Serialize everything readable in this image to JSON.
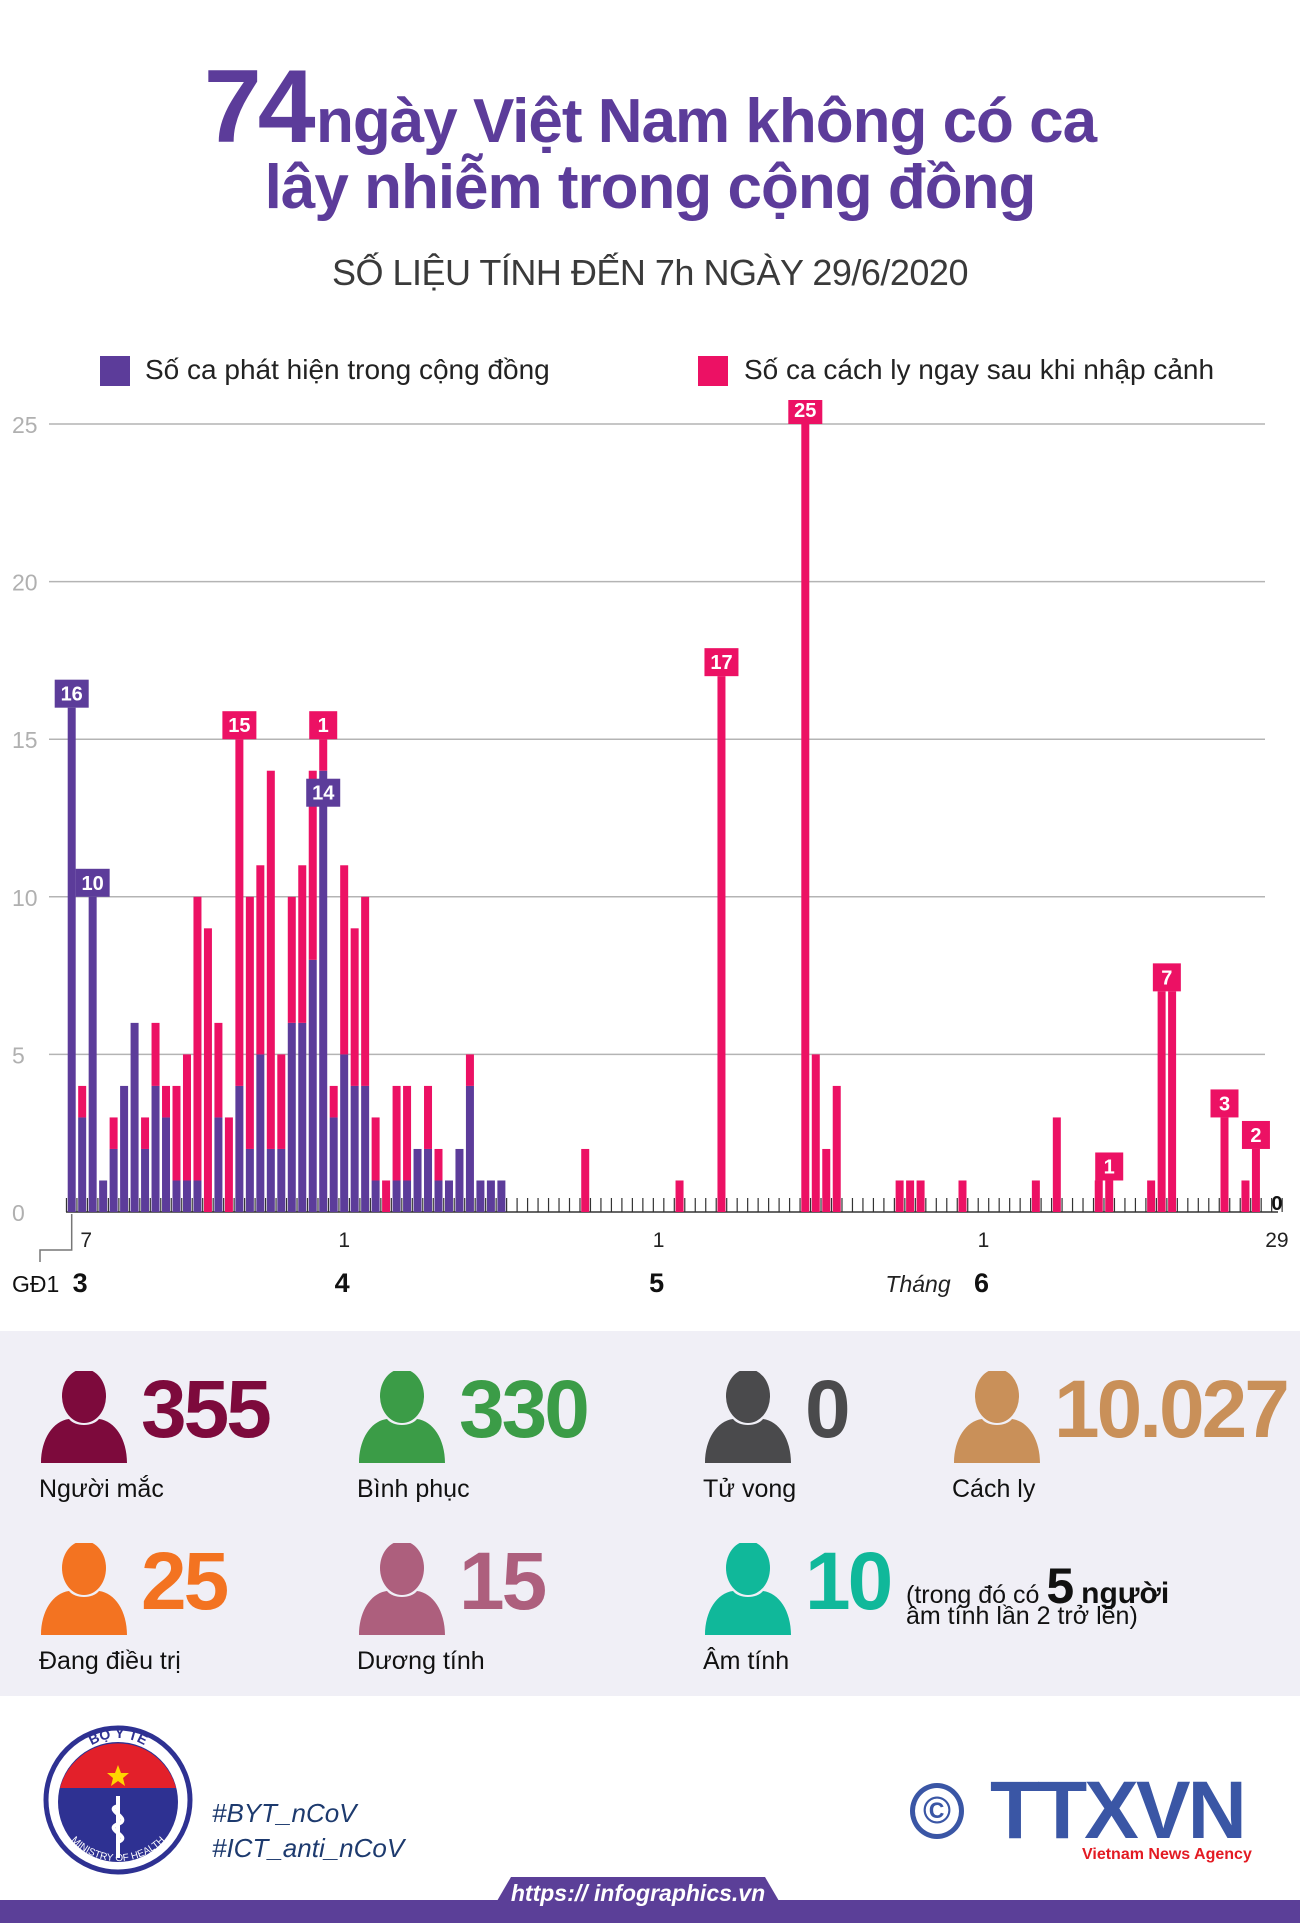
{
  "header": {
    "title_number": "74",
    "title_line1": "ngày Việt Nam không có ca",
    "title_line2": "lây nhiễm trong cộng đồng",
    "subtitle": "SỐ LIỆU TÍNH ĐẾN 7h NGÀY 29/6/2020"
  },
  "colors": {
    "title": "#5c3c9a",
    "community": "#5c3c9a",
    "quarantine": "#ec1164",
    "grid": "#b4b4b4",
    "stats_bg": "#f0eff6",
    "brand_blue": "#3a56a5",
    "brand_red": "#e31b23"
  },
  "chart_data": {
    "type": "bar",
    "stacked": true,
    "title": "",
    "xlabel": "",
    "ylabel": "",
    "ylim": [
      0,
      25
    ],
    "y_ticks": [
      "0",
      "5",
      "10",
      "15",
      "20",
      "25"
    ],
    "grid": true,
    "legend_placement": "top",
    "x_range": [
      "2020-03-06",
      "2020-06-29"
    ],
    "series": [
      {
        "key": "community",
        "name": "Số ca phát hiện trong cộng đồng",
        "color": "#5c3c9a"
      },
      {
        "key": "quarantine",
        "name": "Số ca cách ly ngay sau khi nhập cảnh",
        "color": "#ec1164"
      }
    ],
    "points": [
      {
        "date": "2020-03-06",
        "community": 16,
        "quarantine": 0
      },
      {
        "date": "2020-03-07",
        "community": 3,
        "quarantine": 1
      },
      {
        "date": "2020-03-08",
        "community": 10,
        "quarantine": 0
      },
      {
        "date": "2020-03-09",
        "community": 1,
        "quarantine": 0
      },
      {
        "date": "2020-03-10",
        "community": 2,
        "quarantine": 1
      },
      {
        "date": "2020-03-11",
        "community": 4,
        "quarantine": 0
      },
      {
        "date": "2020-03-12",
        "community": 6,
        "quarantine": 0
      },
      {
        "date": "2020-03-13",
        "community": 2,
        "quarantine": 1
      },
      {
        "date": "2020-03-14",
        "community": 4,
        "quarantine": 2
      },
      {
        "date": "2020-03-15",
        "community": 3,
        "quarantine": 1
      },
      {
        "date": "2020-03-16",
        "community": 1,
        "quarantine": 3
      },
      {
        "date": "2020-03-17",
        "community": 1,
        "quarantine": 4
      },
      {
        "date": "2020-03-18",
        "community": 1,
        "quarantine": 9
      },
      {
        "date": "2020-03-19",
        "community": 0,
        "quarantine": 9
      },
      {
        "date": "2020-03-20",
        "community": 3,
        "quarantine": 3
      },
      {
        "date": "2020-03-21",
        "community": 0,
        "quarantine": 3
      },
      {
        "date": "2020-03-22",
        "community": 4,
        "quarantine": 11
      },
      {
        "date": "2020-03-23",
        "community": 2,
        "quarantine": 8
      },
      {
        "date": "2020-03-24",
        "community": 5,
        "quarantine": 6
      },
      {
        "date": "2020-03-25",
        "community": 2,
        "quarantine": 12
      },
      {
        "date": "2020-03-26",
        "community": 2,
        "quarantine": 3
      },
      {
        "date": "2020-03-27",
        "community": 6,
        "quarantine": 4
      },
      {
        "date": "2020-03-28",
        "community": 6,
        "quarantine": 5
      },
      {
        "date": "2020-03-29",
        "community": 8,
        "quarantine": 6
      },
      {
        "date": "2020-03-30",
        "community": 14,
        "quarantine": 1
      },
      {
        "date": "2020-03-31",
        "community": 3,
        "quarantine": 1
      },
      {
        "date": "2020-04-01",
        "community": 5,
        "quarantine": 6
      },
      {
        "date": "2020-04-02",
        "community": 4,
        "quarantine": 5
      },
      {
        "date": "2020-04-03",
        "community": 4,
        "quarantine": 6
      },
      {
        "date": "2020-04-04",
        "community": 1,
        "quarantine": 2
      },
      {
        "date": "2020-04-05",
        "community": 0,
        "quarantine": 1
      },
      {
        "date": "2020-04-06",
        "community": 1,
        "quarantine": 3
      },
      {
        "date": "2020-04-07",
        "community": 1,
        "quarantine": 3
      },
      {
        "date": "2020-04-08",
        "community": 2,
        "quarantine": 0
      },
      {
        "date": "2020-04-09",
        "community": 2,
        "quarantine": 2
      },
      {
        "date": "2020-04-10",
        "community": 1,
        "quarantine": 1
      },
      {
        "date": "2020-04-11",
        "community": 1,
        "quarantine": 0
      },
      {
        "date": "2020-04-12",
        "community": 2,
        "quarantine": 0
      },
      {
        "date": "2020-04-13",
        "community": 4,
        "quarantine": 1
      },
      {
        "date": "2020-04-14",
        "community": 1,
        "quarantine": 0
      },
      {
        "date": "2020-04-15",
        "community": 1,
        "quarantine": 0
      },
      {
        "date": "2020-04-16",
        "community": 1,
        "quarantine": 0
      },
      {
        "date": "2020-04-24",
        "community": 0,
        "quarantine": 2
      },
      {
        "date": "2020-05-03",
        "community": 0,
        "quarantine": 1
      },
      {
        "date": "2020-05-07",
        "community": 0,
        "quarantine": 17
      },
      {
        "date": "2020-05-15",
        "community": 0,
        "quarantine": 25
      },
      {
        "date": "2020-05-16",
        "community": 0,
        "quarantine": 5
      },
      {
        "date": "2020-05-17",
        "community": 0,
        "quarantine": 2
      },
      {
        "date": "2020-05-18",
        "community": 0,
        "quarantine": 4
      },
      {
        "date": "2020-05-24",
        "community": 0,
        "quarantine": 1
      },
      {
        "date": "2020-05-25",
        "community": 0,
        "quarantine": 1
      },
      {
        "date": "2020-05-26",
        "community": 0,
        "quarantine": 1
      },
      {
        "date": "2020-05-30",
        "community": 0,
        "quarantine": 1
      },
      {
        "date": "2020-06-06",
        "community": 0,
        "quarantine": 1
      },
      {
        "date": "2020-06-08",
        "community": 0,
        "quarantine": 3
      },
      {
        "date": "2020-06-12",
        "community": 0,
        "quarantine": 1
      },
      {
        "date": "2020-06-13",
        "community": 0,
        "quarantine": 1
      },
      {
        "date": "2020-06-17",
        "community": 0,
        "quarantine": 1
      },
      {
        "date": "2020-06-18",
        "community": 0,
        "quarantine": 7
      },
      {
        "date": "2020-06-19",
        "community": 0,
        "quarantine": 7
      },
      {
        "date": "2020-06-24",
        "community": 0,
        "quarantine": 3
      },
      {
        "date": "2020-06-26",
        "community": 0,
        "quarantine": 1
      },
      {
        "date": "2020-06-27",
        "community": 0,
        "quarantine": 2
      },
      {
        "date": "2020-06-29",
        "community": 0,
        "quarantine": 0
      }
    ],
    "annotations": [
      {
        "dates": [
          "2020-03-06"
        ],
        "text": "16",
        "series": "community",
        "placement": "top"
      },
      {
        "dates": [
          "2020-03-08"
        ],
        "text": "10",
        "series": "community",
        "placement": "top"
      },
      {
        "dates": [
          "2020-03-22"
        ],
        "text": "15",
        "series": "quarantine",
        "placement": "top"
      },
      {
        "dates": [
          "2020-03-30"
        ],
        "text": "1",
        "series": "quarantine",
        "placement": "top"
      },
      {
        "dates": [
          "2020-03-30"
        ],
        "text": "14",
        "series": "community",
        "placement": "inside"
      },
      {
        "dates": [
          "2020-05-07"
        ],
        "text": "17",
        "series": "quarantine",
        "placement": "top"
      },
      {
        "dates": [
          "2020-05-15"
        ],
        "text": "25",
        "series": "quarantine",
        "placement": "top"
      },
      {
        "dates": [
          "2020-06-13"
        ],
        "text": "1",
        "series": "quarantine",
        "placement": "top"
      },
      {
        "dates": [
          "2020-06-18",
          "2020-06-19"
        ],
        "text": "7",
        "series": "quarantine",
        "placement": "top"
      },
      {
        "dates": [
          "2020-06-24"
        ],
        "text": "3",
        "series": "quarantine",
        "placement": "top"
      },
      {
        "dates": [
          "2020-06-27"
        ],
        "text": "2",
        "series": "quarantine",
        "placement": "top"
      },
      {
        "dates": [
          "2020-06-29"
        ],
        "text": "0",
        "series": "none",
        "placement": "axis"
      }
    ],
    "x_tick_labels": [
      {
        "date": "2020-03-07",
        "label": "7"
      },
      {
        "date": "2020-04-01",
        "label": "1"
      },
      {
        "date": "2020-05-01",
        "label": "1"
      },
      {
        "date": "2020-06-01",
        "label": "1"
      },
      {
        "date": "2020-06-29",
        "label": "29"
      }
    ],
    "month_labels": [
      {
        "date": "2020-03-07",
        "label": "3"
      },
      {
        "date": "2020-04-01",
        "label": "4"
      },
      {
        "date": "2020-05-01",
        "label": "5"
      },
      {
        "date": "2020-06-01",
        "label": "6"
      }
    ],
    "month_prefix": "Tháng",
    "phase_label": "GĐ1"
  },
  "stats": [
    {
      "value": "355",
      "label": "Người mắc",
      "color": "#7d0a3c"
    },
    {
      "value": "330",
      "label": "Bình phục",
      "color": "#3b9c47"
    },
    {
      "value": "0",
      "label": "Tử vong",
      "color": "#4a4a4c"
    },
    {
      "value": "10.027",
      "label": "Cách ly",
      "color": "#c99059"
    },
    {
      "value": "25",
      "label": "Đang điều trị",
      "color": "#f37321"
    },
    {
      "value": "15",
      "label": "Dương tính",
      "color": "#ad5f7d"
    },
    {
      "value": "10",
      "label": "Âm tính",
      "color": "#10b89a"
    }
  ],
  "stats_note": {
    "prefix": "(trong đó có",
    "number": "5",
    "suffix": "người",
    "line2": "âm tính lần 2 trở lên)"
  },
  "footer": {
    "logo_top": "BỘ Y TẾ",
    "logo_bottom": "MINISTRY OF HEALTH",
    "hashtags": [
      "#BYT_nCoV",
      "#ICT_anti_nCoV"
    ],
    "copyright": "©",
    "brand": "TTXVN",
    "brand_sub": "Vietnam News Agency",
    "url": "https:// infographics.vn"
  }
}
